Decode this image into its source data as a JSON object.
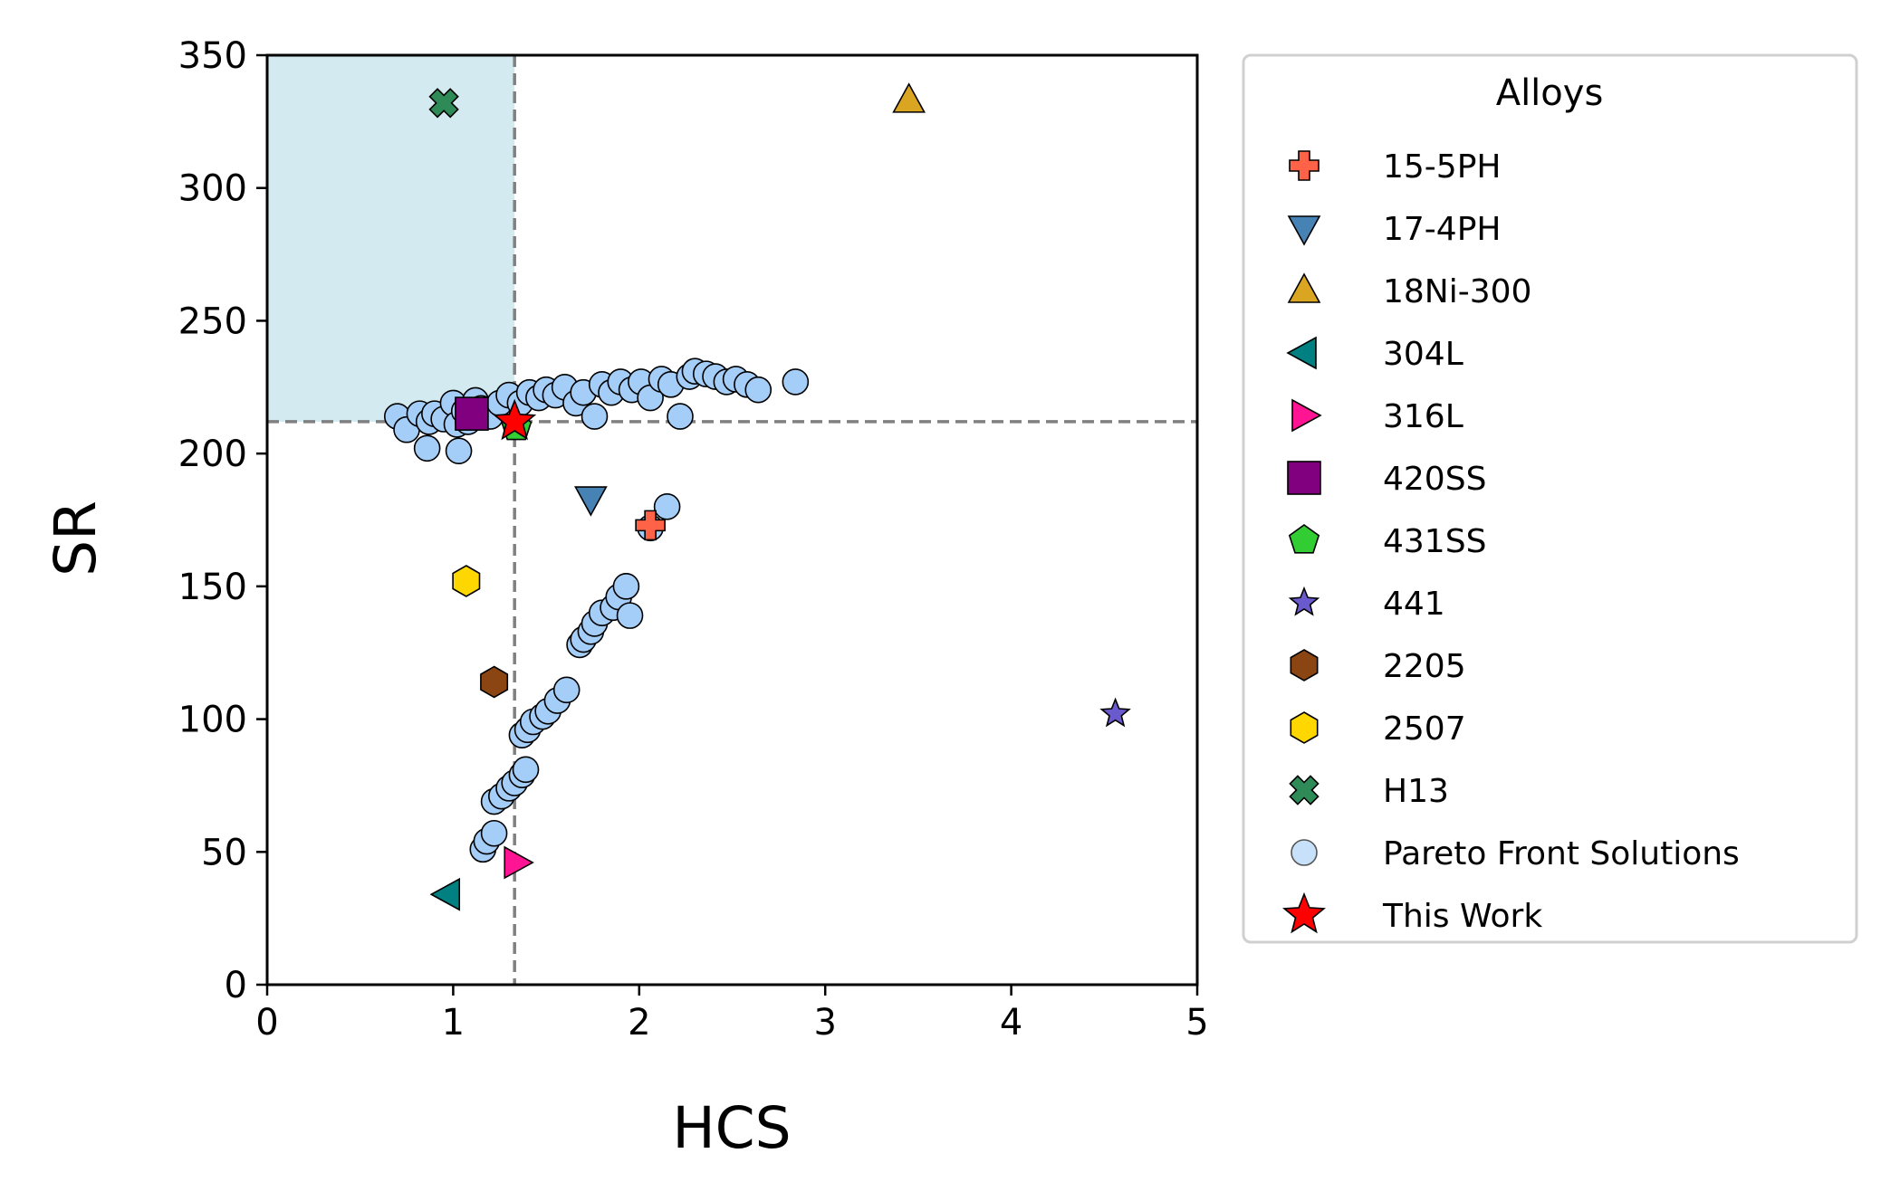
{
  "chart_data": {
    "type": "scatter",
    "title": "",
    "xlabel": "HCS",
    "ylabel": "SR",
    "xlim": [
      0,
      5
    ],
    "ylim": [
      0,
      350
    ],
    "xticks": [
      "0",
      "1",
      "2",
      "3",
      "4",
      "5"
    ],
    "yticks": [
      "0",
      "50",
      "100",
      "150",
      "200",
      "250",
      "300",
      "350"
    ],
    "grid": false,
    "legend": {
      "title": "Alloys",
      "placement": "outside-right"
    },
    "thresholds": {
      "x": 1.33,
      "y": 212
    },
    "highlight_region": {
      "x": [
        0,
        1.33
      ],
      "y": [
        212,
        350
      ],
      "color": "#d3eaf0"
    },
    "series": [
      {
        "name": "15-5PH",
        "marker": "plus",
        "color": "#ff6347",
        "points": [
          [
            2.06,
            173
          ]
        ]
      },
      {
        "name": "17-4PH",
        "marker": "triangle-down",
        "color": "#4682b4",
        "points": [
          [
            1.74,
            183
          ]
        ]
      },
      {
        "name": "18Ni-300",
        "marker": "triangle-up",
        "color": "#daa520",
        "points": [
          [
            3.45,
            333
          ]
        ]
      },
      {
        "name": "304L",
        "marker": "triangle-left",
        "color": "#008080",
        "points": [
          [
            0.97,
            34
          ]
        ]
      },
      {
        "name": "316L",
        "marker": "triangle-right",
        "color": "#ff1493",
        "points": [
          [
            1.34,
            46
          ]
        ]
      },
      {
        "name": "420SS",
        "marker": "square",
        "color": "#800080",
        "points": [
          [
            1.1,
            215
          ]
        ]
      },
      {
        "name": "431SS",
        "marker": "pentagon",
        "color": "#32cd32",
        "points": [
          [
            1.34,
            210
          ]
        ]
      },
      {
        "name": "441",
        "marker": "star-small",
        "color": "#6a5acd",
        "points": [
          [
            4.56,
            102
          ]
        ]
      },
      {
        "name": "2205",
        "marker": "hexagon",
        "color": "#8b4513",
        "points": [
          [
            1.22,
            114
          ]
        ]
      },
      {
        "name": "2507",
        "marker": "hexagon",
        "color": "#ffd700",
        "points": [
          [
            1.07,
            152
          ]
        ]
      },
      {
        "name": "H13",
        "marker": "x-filled",
        "color": "#2e8b57",
        "points": [
          [
            0.95,
            332
          ]
        ]
      },
      {
        "name": "Pareto Front Solutions",
        "marker": "circle",
        "color": "#a4cdf7",
        "points": [
          [
            0.7,
            214
          ],
          [
            0.75,
            209
          ],
          [
            0.82,
            215
          ],
          [
            0.87,
            212
          ],
          [
            0.86,
            202
          ],
          [
            0.9,
            215
          ],
          [
            0.95,
            213
          ],
          [
            1.0,
            219
          ],
          [
            1.02,
            211
          ],
          [
            1.03,
            201
          ],
          [
            1.06,
            216
          ],
          [
            1.08,
            212
          ],
          [
            1.12,
            220
          ],
          [
            1.15,
            217
          ],
          [
            1.2,
            214
          ],
          [
            1.25,
            219
          ],
          [
            1.3,
            222
          ],
          [
            1.36,
            219
          ],
          [
            1.41,
            223
          ],
          [
            1.46,
            221
          ],
          [
            1.5,
            224
          ],
          [
            1.55,
            222
          ],
          [
            1.6,
            225
          ],
          [
            1.66,
            219
          ],
          [
            1.7,
            223
          ],
          [
            1.76,
            214
          ],
          [
            1.8,
            226
          ],
          [
            1.85,
            223
          ],
          [
            1.9,
            227
          ],
          [
            1.96,
            224
          ],
          [
            2.01,
            227
          ],
          [
            2.06,
            221
          ],
          [
            2.12,
            228
          ],
          [
            2.17,
            226
          ],
          [
            2.22,
            214
          ],
          [
            2.27,
            229
          ],
          [
            2.3,
            231
          ],
          [
            2.36,
            230
          ],
          [
            2.41,
            229
          ],
          [
            2.47,
            227
          ],
          [
            2.52,
            228
          ],
          [
            2.58,
            226
          ],
          [
            2.64,
            224
          ],
          [
            2.84,
            227
          ],
          [
            1.16,
            51
          ],
          [
            1.18,
            54
          ],
          [
            1.22,
            57
          ],
          [
            1.22,
            69
          ],
          [
            1.26,
            71
          ],
          [
            1.3,
            74
          ],
          [
            1.33,
            76
          ],
          [
            1.37,
            79
          ],
          [
            1.39,
            81
          ],
          [
            1.37,
            94
          ],
          [
            1.4,
            96
          ],
          [
            1.43,
            99
          ],
          [
            1.48,
            101
          ],
          [
            1.51,
            103
          ],
          [
            1.56,
            107
          ],
          [
            1.61,
            111
          ],
          [
            1.68,
            128
          ],
          [
            1.7,
            130
          ],
          [
            1.74,
            133
          ],
          [
            1.76,
            136
          ],
          [
            1.8,
            140
          ],
          [
            1.86,
            142
          ],
          [
            1.89,
            146
          ],
          [
            1.93,
            150
          ],
          [
            1.95,
            139
          ],
          [
            2.06,
            172
          ],
          [
            2.15,
            180
          ]
        ]
      },
      {
        "name": "This Work",
        "marker": "star",
        "color": "#ff0000",
        "points": [
          [
            1.33,
            212
          ]
        ]
      }
    ]
  }
}
